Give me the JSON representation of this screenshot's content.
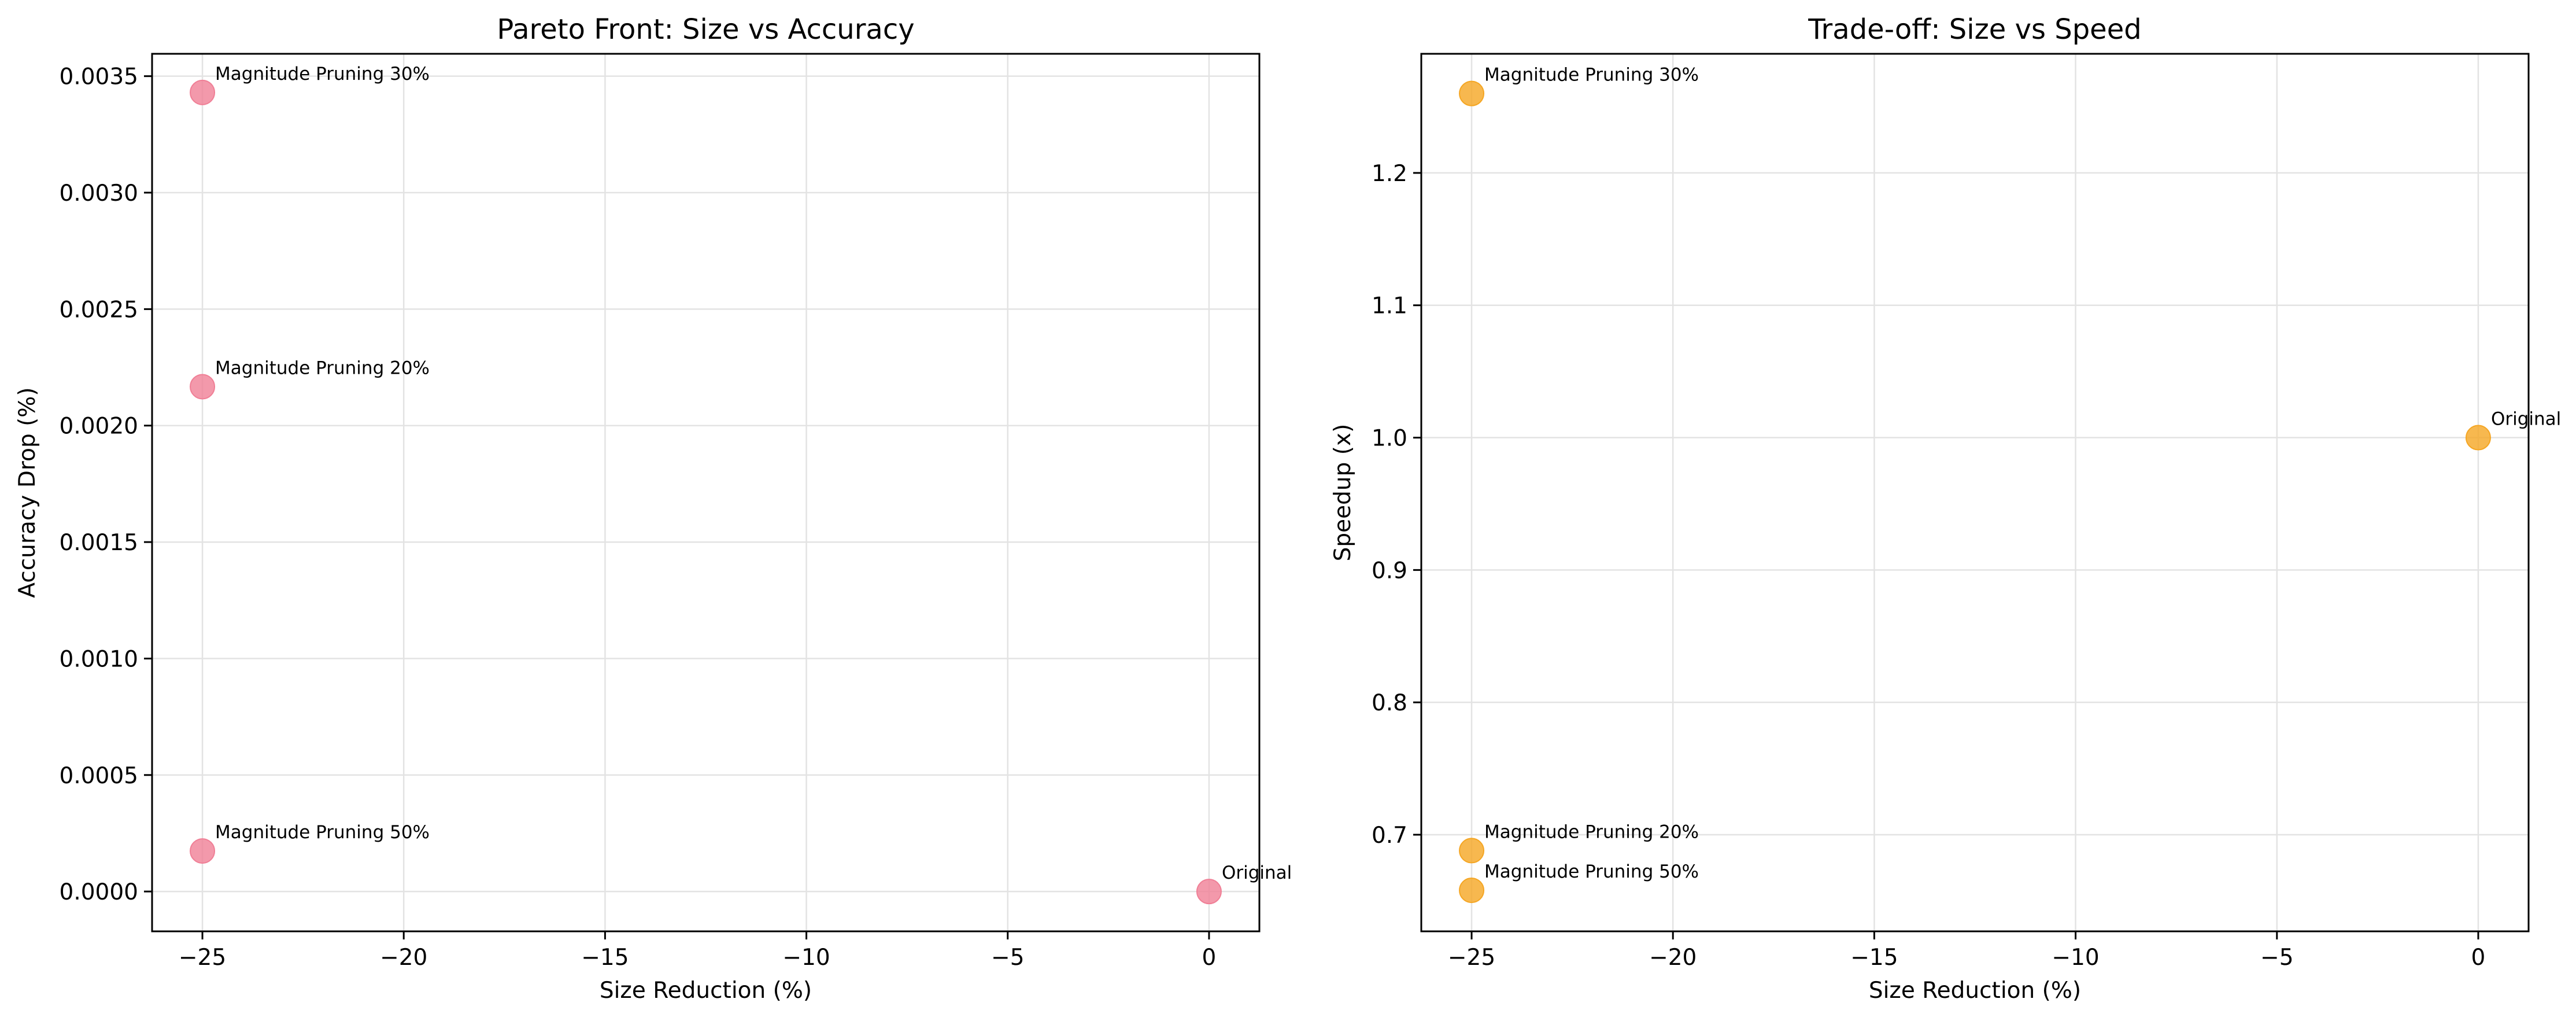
{
  "chart_data": [
    {
      "type": "scatter",
      "title": "Pareto Front: Size vs Accuracy",
      "xlabel": "Size Reduction (%)",
      "ylabel": "Accuracy Drop (%)",
      "xlim": [
        -26.25,
        1.25
      ],
      "ylim": [
        -0.000171,
        0.003596
      ],
      "xticks": [
        -25,
        -20,
        -15,
        -10,
        -5,
        0
      ],
      "xtick_labels": [
        "−25",
        "−20",
        "−15",
        "−10",
        "−5",
        "0"
      ],
      "yticks": [
        0.0,
        0.0005,
        0.001,
        0.0015,
        0.002,
        0.0025,
        0.003,
        0.0035
      ],
      "ytick_labels": [
        "0.0000",
        "0.0005",
        "0.0010",
        "0.0015",
        "0.0020",
        "0.0025",
        "0.0030",
        "0.0035"
      ],
      "grid": true,
      "color": "#f07f96",
      "points": [
        {
          "label": "Original",
          "x": 0,
          "y": 0.0
        },
        {
          "label": "Magnitude Pruning 20%",
          "x": -25,
          "y": 0.002167
        },
        {
          "label": "Magnitude Pruning 30%",
          "x": -25,
          "y": 0.00343
        },
        {
          "label": "Magnitude Pruning 50%",
          "x": -25,
          "y": 0.000174
        }
      ]
    },
    {
      "type": "scatter",
      "title": "Trade-off: Size vs Speed",
      "xlabel": "Size Reduction (%)",
      "ylabel": "Speedup (x)",
      "xlim": [
        -26.25,
        1.25
      ],
      "ylim": [
        0.627,
        1.29
      ],
      "xticks": [
        -25,
        -20,
        -15,
        -10,
        -5,
        0
      ],
      "xtick_labels": [
        "−25",
        "−20",
        "−15",
        "−10",
        "−5",
        "0"
      ],
      "yticks": [
        0.7,
        0.8,
        0.9,
        1.0,
        1.1,
        1.2
      ],
      "ytick_labels": [
        "0.7",
        "0.8",
        "0.9",
        "1.0",
        "1.1",
        "1.2"
      ],
      "grid": true,
      "color": "#f5a623",
      "points": [
        {
          "label": "Original",
          "x": 0,
          "y": 1.0
        },
        {
          "label": "Magnitude Pruning 20%",
          "x": -25,
          "y": 0.688
        },
        {
          "label": "Magnitude Pruning 30%",
          "x": -25,
          "y": 1.26
        },
        {
          "label": "Magnitude Pruning 50%",
          "x": -25,
          "y": 0.658
        }
      ]
    }
  ]
}
